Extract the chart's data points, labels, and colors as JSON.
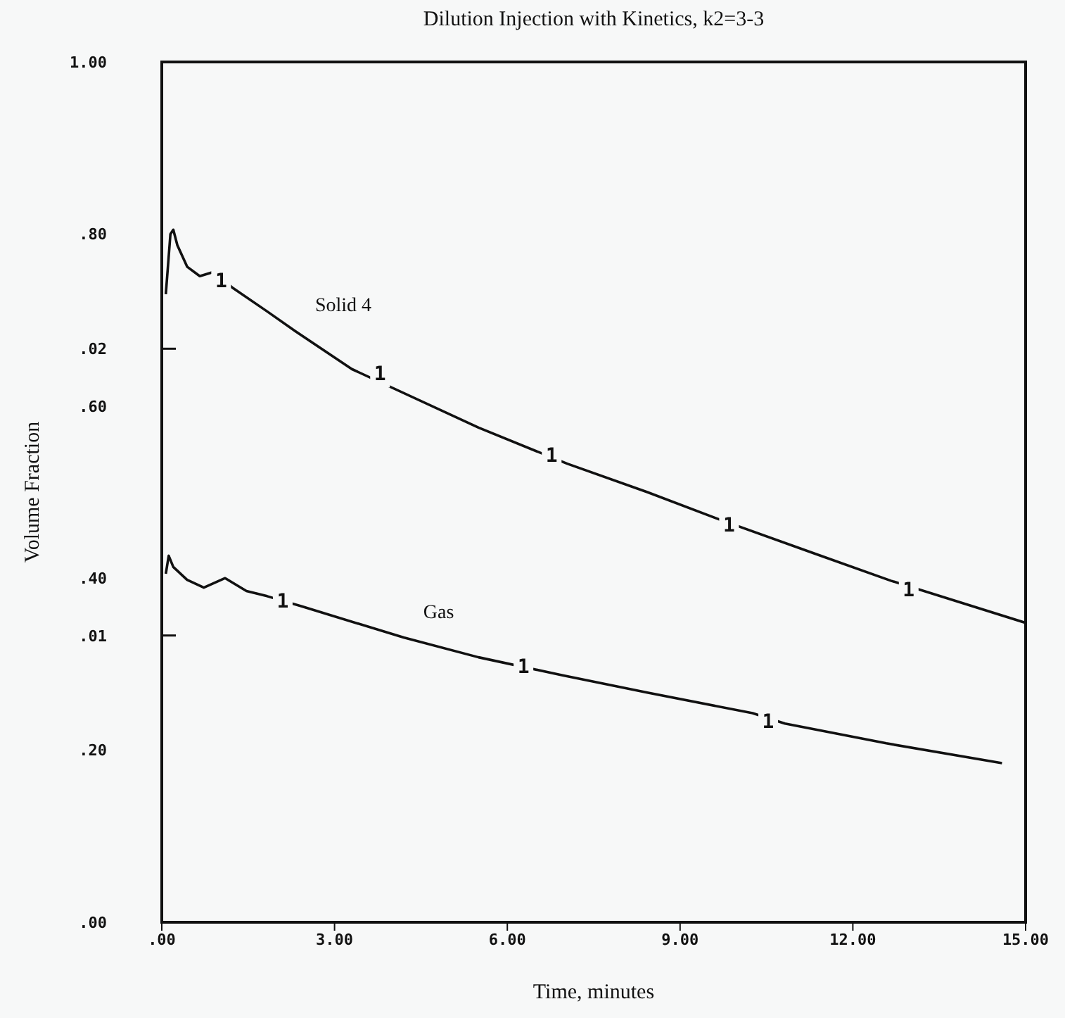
{
  "chart_data": {
    "type": "line",
    "title": "Dilution Injection with Kinetics, k2=3-3",
    "xlabel": "Time, minutes",
    "ylabel": "Volume Fraction",
    "xlim": [
      0,
      15
    ],
    "xticks": [
      {
        "value": 0,
        "label": ".00"
      },
      {
        "value": 3,
        "label": "3.00"
      },
      {
        "value": 6,
        "label": "6.00"
      },
      {
        "value": 9,
        "label": "9.00"
      },
      {
        "value": 12,
        "label": "12.00"
      },
      {
        "value": 15,
        "label": "15.00"
      }
    ],
    "ylim": [
      0,
      1
    ],
    "yticks": [
      {
        "value": 0,
        "label": ".00"
      },
      {
        "value": 0.2,
        "label": ".20"
      },
      {
        "value": 0.4,
        "label": ".40"
      },
      {
        "value": 0.6,
        "label": ".60"
      },
      {
        "value": 0.8,
        "label": ".80"
      },
      {
        "value": 1,
        "label": "1.00"
      }
    ],
    "y2lim": [
      0,
      0.03
    ],
    "y2ticks": [
      {
        "value": 0.01,
        "label": ".01"
      },
      {
        "value": 0.02,
        "label": ".02"
      }
    ],
    "grid": false,
    "legend": false,
    "marker": "none",
    "line_style": "solid",
    "series": [
      {
        "name": "Solid 4",
        "color": "#111111",
        "x": [
          0.07,
          0.15,
          0.2,
          0.27,
          0.44,
          0.66,
          0.9,
          1.22,
          1.83,
          2.32,
          3.3,
          5.5,
          7.04,
          8.43,
          9.65,
          11.36,
          12.66,
          15
        ],
        "values": [
          0.73,
          0.8,
          0.805,
          0.787,
          0.762,
          0.751,
          0.756,
          0.738,
          0.71,
          0.687,
          0.643,
          0.575,
          0.533,
          0.5,
          0.469,
          0.428,
          0.397,
          0.348
        ]
      },
      {
        "name": "Gas",
        "color": "#111111",
        "x": [
          0.07,
          0.12,
          0.2,
          0.44,
          0.73,
          1.1,
          1.47,
          1.83,
          2.44,
          4.2,
          5.5,
          6.96,
          8.43,
          10.26,
          10.82,
          12.58,
          14.59
        ],
        "values": [
          0.405,
          0.426,
          0.413,
          0.398,
          0.389,
          0.4,
          0.385,
          0.379,
          0.367,
          0.331,
          0.308,
          0.287,
          0.267,
          0.243,
          0.231,
          0.208,
          0.185
        ]
      }
    ],
    "annotations": [
      {
        "text": "1",
        "x": 1.03,
        "y": 0.746
      },
      {
        "text": "1",
        "x": 3.79,
        "y": 0.638
      },
      {
        "text": "1",
        "x": 6.77,
        "y": 0.543
      },
      {
        "text": "1",
        "x": 9.85,
        "y": 0.462
      },
      {
        "text": "1",
        "x": 12.97,
        "y": 0.387
      },
      {
        "text": "1",
        "x": 2.1,
        "y": 0.374
      },
      {
        "text": "1",
        "x": 6.28,
        "y": 0.298
      },
      {
        "text": "1",
        "x": 10.53,
        "y": 0.234
      }
    ]
  }
}
